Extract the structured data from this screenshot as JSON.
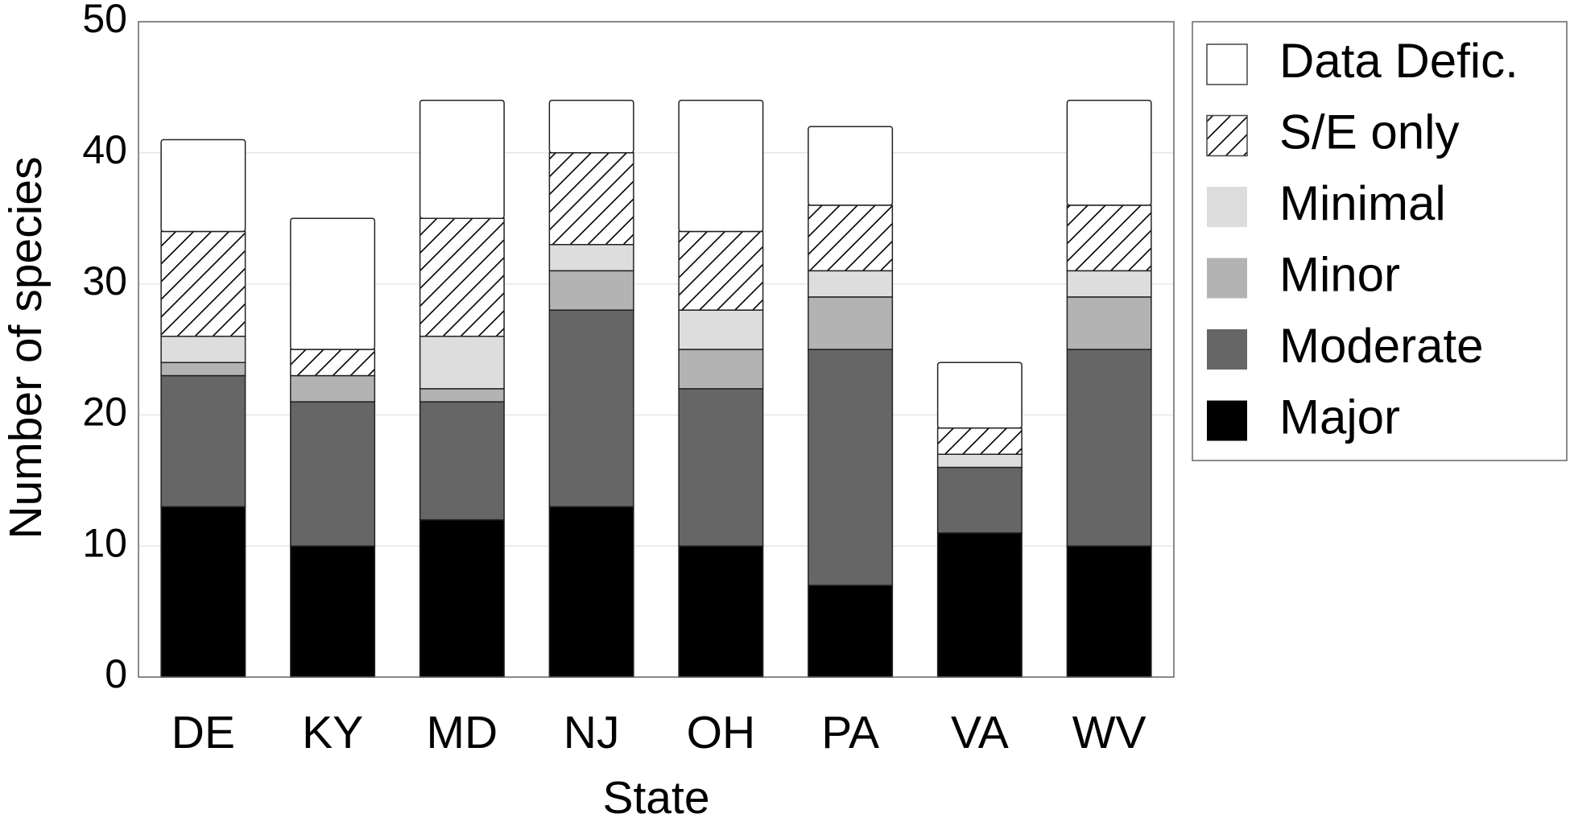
{
  "chart_data": {
    "type": "stacked_bar",
    "x_label": "State",
    "y_label": "Number of species",
    "categories": [
      "DE",
      "KY",
      "MD",
      "NJ",
      "OH",
      "PA",
      "VA",
      "WV"
    ],
    "series": [
      {
        "name": "Major",
        "color": "#000000",
        "values": [
          13,
          10,
          12,
          13,
          10,
          7,
          11,
          10
        ]
      },
      {
        "name": "Moderate",
        "color": "#666666",
        "values": [
          10,
          11,
          9,
          15,
          12,
          18,
          5,
          15
        ]
      },
      {
        "name": "Minor",
        "color": "#b3b3b3",
        "values": [
          1,
          2,
          1,
          3,
          3,
          4,
          0,
          4
        ]
      },
      {
        "name": "Minimal",
        "color": "#dddddd",
        "values": [
          2,
          0,
          4,
          2,
          3,
          2,
          1,
          2
        ]
      },
      {
        "name": "S/E only",
        "color": "#ffffff",
        "hatch": true,
        "values": [
          8,
          2,
          9,
          7,
          6,
          5,
          2,
          5
        ]
      },
      {
        "name": "Data Defic.",
        "color": "#ffffff",
        "values": [
          7,
          10,
          9,
          4,
          10,
          6,
          5,
          8
        ]
      }
    ],
    "ylim": [
      0,
      50
    ],
    "yticks": [
      0,
      10,
      20,
      30,
      40,
      50
    ],
    "grid": true,
    "legend": "outside-right"
  }
}
